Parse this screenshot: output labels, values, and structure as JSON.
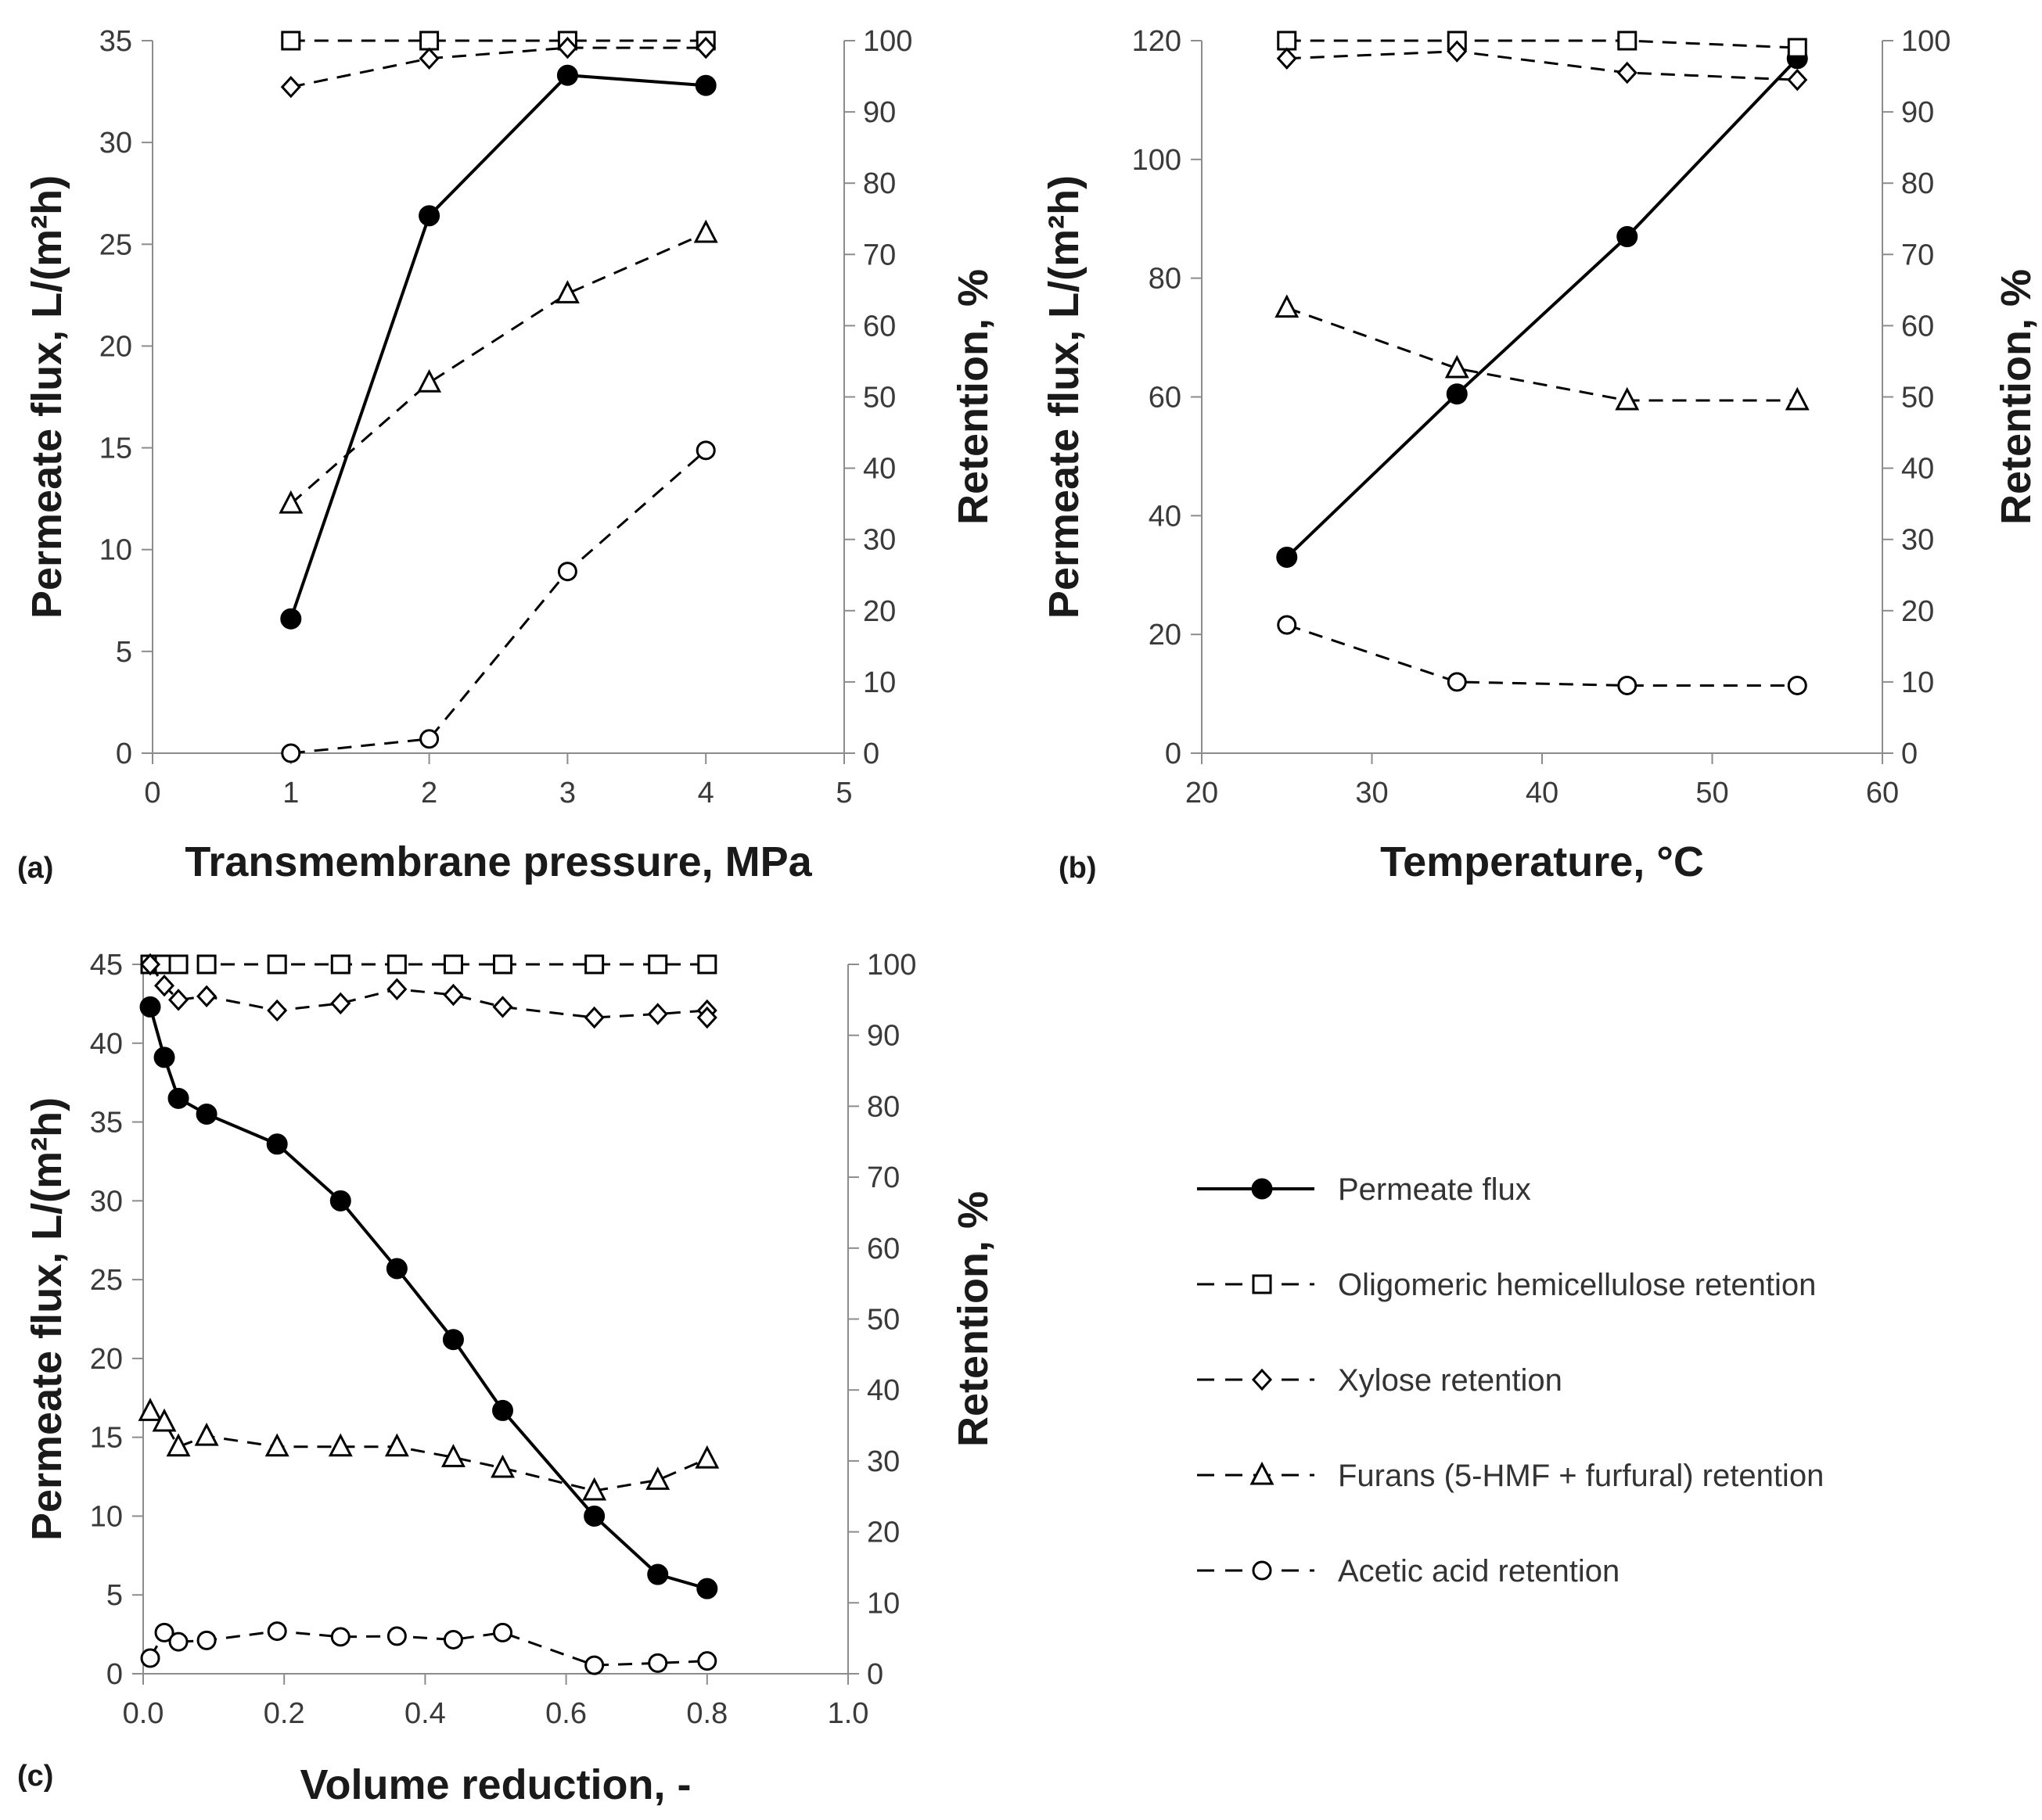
{
  "chart_data": [
    {
      "type": "line",
      "panel": "(a)",
      "xlabel": "Transmembrane pressure, MPa",
      "ylabel_left": "Permeate flux, L/(m²h)",
      "ylabel_right": "Retention, %",
      "xlim": [
        0,
        5
      ],
      "xticks": [
        "0",
        "1",
        "2",
        "3",
        "4",
        "5"
      ],
      "ylim_left": [
        0,
        35
      ],
      "yticks_left": [
        "0",
        "5",
        "10",
        "15",
        "20",
        "25",
        "30",
        "35"
      ],
      "ylim_right": [
        0,
        100
      ],
      "yticks_right": [
        "0",
        "10",
        "20",
        "30",
        "40",
        "50",
        "60",
        "70",
        "80",
        "90",
        "100"
      ],
      "series": [
        {
          "name": "Permeate flux",
          "axis": "left",
          "marker": "filled-circle",
          "style": "solid",
          "x": [
            1,
            2,
            3,
            4
          ],
          "values": [
            6.6,
            26.4,
            33.3,
            32.8
          ]
        },
        {
          "name": "Oligomeric hemicellulose retention",
          "axis": "right",
          "marker": "square",
          "style": "dashed",
          "x": [
            1,
            2,
            3,
            4
          ],
          "values": [
            100,
            100,
            100,
            100
          ]
        },
        {
          "name": "Xylose retention",
          "axis": "right",
          "marker": "diamond",
          "style": "dashed",
          "x": [
            1,
            2,
            3,
            4
          ],
          "values": [
            93.5,
            97.5,
            99,
            99
          ]
        },
        {
          "name": "Furans (5-HMF + furfural) retention",
          "axis": "right",
          "marker": "triangle",
          "style": "dashed",
          "x": [
            1,
            2,
            3,
            4
          ],
          "values": [
            35,
            52,
            64.5,
            73
          ]
        },
        {
          "name": "Acetic acid retention",
          "axis": "right",
          "marker": "circle",
          "style": "dashed",
          "x": [
            1,
            2,
            3,
            4
          ],
          "values": [
            0,
            2,
            25.5,
            42.5
          ]
        }
      ]
    },
    {
      "type": "line",
      "panel": "(b)",
      "xlabel": "Temperature, °C",
      "ylabel_left": "Permeate flux, L/(m²h)",
      "ylabel_right": "Retention, %",
      "xlim": [
        20,
        60
      ],
      "xticks": [
        "20",
        "30",
        "40",
        "50",
        "60"
      ],
      "ylim_left": [
        0,
        120
      ],
      "yticks_left": [
        "0",
        "20",
        "40",
        "60",
        "80",
        "100",
        "120"
      ],
      "ylim_right": [
        0,
        100
      ],
      "yticks_right": [
        "0",
        "10",
        "20",
        "30",
        "40",
        "50",
        "60",
        "70",
        "80",
        "90",
        "100"
      ],
      "series": [
        {
          "name": "Permeate flux",
          "axis": "left",
          "marker": "filled-circle",
          "style": "solid",
          "x": [
            25,
            35,
            45,
            55
          ],
          "values": [
            33,
            60.5,
            87,
            117
          ]
        },
        {
          "name": "Oligomeric hemicellulose retention",
          "axis": "right",
          "marker": "square",
          "style": "dashed",
          "x": [
            25,
            35,
            45,
            55
          ],
          "values": [
            100,
            100,
            100,
            99
          ]
        },
        {
          "name": "Xylose retention",
          "axis": "right",
          "marker": "diamond",
          "style": "dashed",
          "x": [
            25,
            35,
            45,
            55
          ],
          "values": [
            97.5,
            98.5,
            95.5,
            94.5
          ]
        },
        {
          "name": "Furans (5-HMF + furfural) retention",
          "axis": "right",
          "marker": "triangle",
          "style": "dashed",
          "x": [
            25,
            35,
            45,
            55
          ],
          "values": [
            62.5,
            54,
            49.5,
            49.5
          ]
        },
        {
          "name": "Acetic acid retention",
          "axis": "right",
          "marker": "circle",
          "style": "dashed",
          "x": [
            25,
            35,
            45,
            55
          ],
          "values": [
            18,
            10,
            9.5,
            9.5
          ]
        }
      ]
    },
    {
      "type": "line",
      "panel": "(c)",
      "xlabel": "Volume reduction, -",
      "ylabel_left": "Permeate flux, L/(m²h)",
      "ylabel_right": "Retention, %",
      "xlim": [
        0,
        1
      ],
      "xticks": [
        "0.0",
        "0.2",
        "0.4",
        "0.6",
        "0.8",
        "1.0"
      ],
      "ylim_left": [
        0,
        45
      ],
      "yticks_left": [
        "0",
        "5",
        "10",
        "15",
        "20",
        "25",
        "30",
        "35",
        "40",
        "45"
      ],
      "ylim_right": [
        0,
        100
      ],
      "yticks_right": [
        "0",
        "10",
        "20",
        "30",
        "40",
        "50",
        "60",
        "70",
        "80",
        "90",
        "100"
      ],
      "series": [
        {
          "name": "Permeate flux",
          "axis": "left",
          "marker": "filled-circle",
          "style": "solid",
          "x": [
            0.01,
            0.03,
            0.05,
            0.09,
            0.19,
            0.28,
            0.36,
            0.44,
            0.51,
            0.64,
            0.73,
            0.8
          ],
          "values": [
            42.3,
            39.1,
            36.5,
            35.5,
            33.6,
            30.0,
            25.7,
            21.2,
            16.7,
            10.0,
            6.3,
            5.4
          ]
        },
        {
          "name": "Oligomeric hemicellulose retention",
          "axis": "right",
          "marker": "square",
          "style": "dashed",
          "x": [
            0.01,
            0.03,
            0.05,
            0.09,
            0.19,
            0.28,
            0.36,
            0.44,
            0.51,
            0.64,
            0.73,
            0.8
          ],
          "values": [
            100,
            100,
            100,
            100,
            100,
            100,
            100,
            100,
            100,
            100,
            100,
            100
          ]
        },
        {
          "name": "Xylose retention",
          "axis": "right",
          "marker": "diamond",
          "style": "dashed",
          "x": [
            0.01,
            0.03,
            0.05,
            0.09,
            0.19,
            0.28,
            0.36,
            0.44,
            0.51,
            0.64,
            0.73,
            0.8,
            0.8
          ],
          "values": [
            100,
            97,
            95,
            95.5,
            93.5,
            94.5,
            96.5,
            95.7,
            94,
            92.5,
            93,
            93.5,
            92.5
          ]
        },
        {
          "name": "Furans (5-HMF + furfural) retention",
          "axis": "right",
          "marker": "triangle",
          "style": "dashed",
          "x": [
            0.01,
            0.03,
            0.05,
            0.09,
            0.19,
            0.28,
            0.36,
            0.44,
            0.51,
            0.64,
            0.73,
            0.8
          ],
          "values": [
            37,
            35.5,
            32,
            33.5,
            32,
            32,
            32,
            30.5,
            29,
            25.8,
            27.3,
            30.3
          ]
        },
        {
          "name": "Acetic acid retention",
          "axis": "right",
          "marker": "circle",
          "style": "dashed",
          "x": [
            0.01,
            0.03,
            0.05,
            0.09,
            0.19,
            0.28,
            0.36,
            0.44,
            0.51,
            0.64,
            0.73,
            0.8
          ],
          "values": [
            2.2,
            5.8,
            4.5,
            4.7,
            6,
            5.2,
            5.3,
            4.8,
            5.8,
            1.2,
            1.5,
            1.8
          ]
        }
      ]
    }
  ],
  "legend": {
    "placement": "bottom-right",
    "entries": [
      {
        "label": "Permeate flux",
        "marker": "filled-circle",
        "style": "solid"
      },
      {
        "label": "Oligomeric hemicellulose retention",
        "marker": "square",
        "style": "dashed"
      },
      {
        "label": "Xylose retention",
        "marker": "diamond",
        "style": "dashed"
      },
      {
        "label": "Furans (5-HMF + furfural) retention",
        "marker": "triangle",
        "style": "dashed"
      },
      {
        "label": "Acetic acid retention",
        "marker": "circle",
        "style": "dashed"
      }
    ]
  },
  "colors": {
    "line": "#000000",
    "axis": "#8c8c8c",
    "marker_fill": "#ffffff"
  }
}
